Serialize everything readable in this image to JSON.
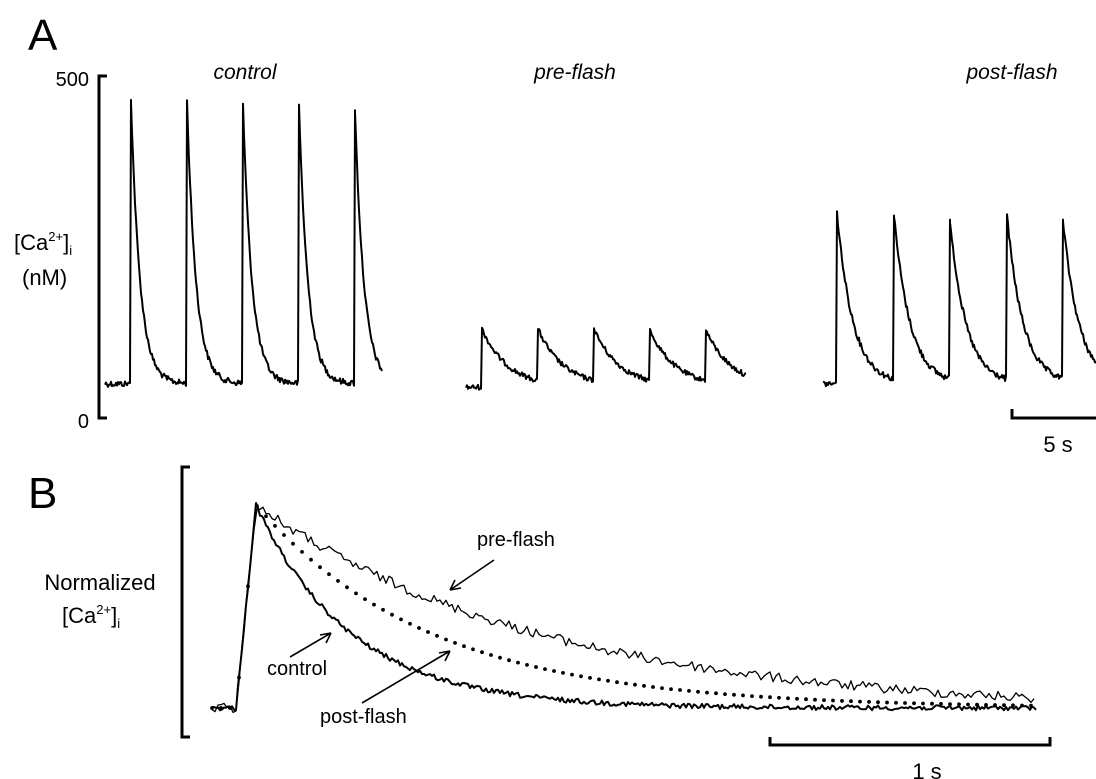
{
  "chart_data": [
    {
      "panel": "A",
      "type": "line",
      "ylabel": "[Ca2+]i (nM)",
      "ylim": [
        0,
        500
      ],
      "yticks": [
        "500",
        "0"
      ],
      "scale_bar": "5 s",
      "conditions": [
        {
          "name": "control",
          "peaks": [
            465,
            462,
            458,
            455,
            450
          ],
          "baseline": 50
        },
        {
          "name": "pre-flash",
          "peaks": [
            130,
            130,
            130,
            128,
            128
          ],
          "baseline": 45
        },
        {
          "name": "post-flash",
          "peaks": [
            300,
            296,
            290,
            296,
            290
          ],
          "baseline": 50
        }
      ]
    },
    {
      "panel": "B",
      "type": "line",
      "ylabel": "Normalized [Ca2+]i",
      "ylim": [
        0,
        1
      ],
      "scale_bar": "1 s",
      "series": [
        {
          "name": "control",
          "style": "dotted"
        },
        {
          "name": "pre-flash",
          "style": "thin"
        },
        {
          "name": "post-flash",
          "style": "thick"
        }
      ]
    }
  ],
  "panelA": {
    "letter": "A",
    "ytick_top": "500",
    "ytick_bottom": "0",
    "ylabel_base": "[Ca",
    "ylabel_sup": "2+",
    "ylabel_close": "]",
    "ylabel_sub": "i",
    "ylabel_unit": "(nM)",
    "cond_control": "control",
    "cond_pre": "pre-flash",
    "cond_post": "post-flash",
    "scale_label": "5 s"
  },
  "panelB": {
    "letter": "B",
    "ylabel_line1": "Normalized",
    "ylabel_base": "[Ca",
    "ylabel_sup": "2+",
    "ylabel_close": "]",
    "ylabel_sub": "i",
    "label_pre": "pre-flash",
    "label_control": "control",
    "label_post": "post-flash",
    "scale_label": "1 s"
  }
}
